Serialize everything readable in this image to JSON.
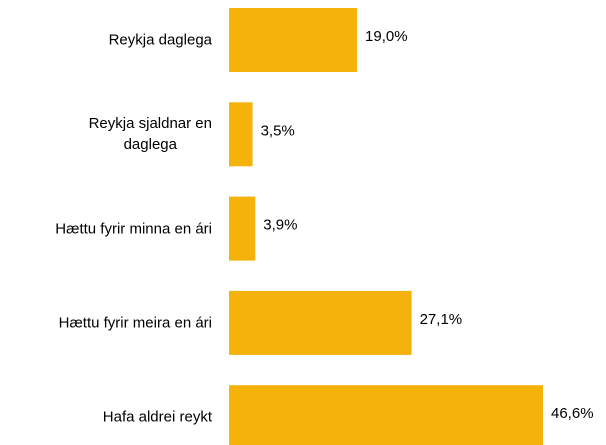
{
  "chart_data": {
    "type": "bar",
    "orientation": "horizontal",
    "categories": [
      "Reykja daglega",
      "Reykja sjaldnar en\ndaglega",
      "Hættu fyrir minna en ári",
      "Hættu fyrir meira en ári",
      "Hafa aldrei reykt"
    ],
    "values": [
      19.0,
      3.5,
      3.9,
      27.1,
      46.6
    ],
    "value_labels": [
      "19,0%",
      "3,5%",
      "3,9%",
      "27,1%",
      "46,6%"
    ],
    "color": "#f5b20b"
  }
}
